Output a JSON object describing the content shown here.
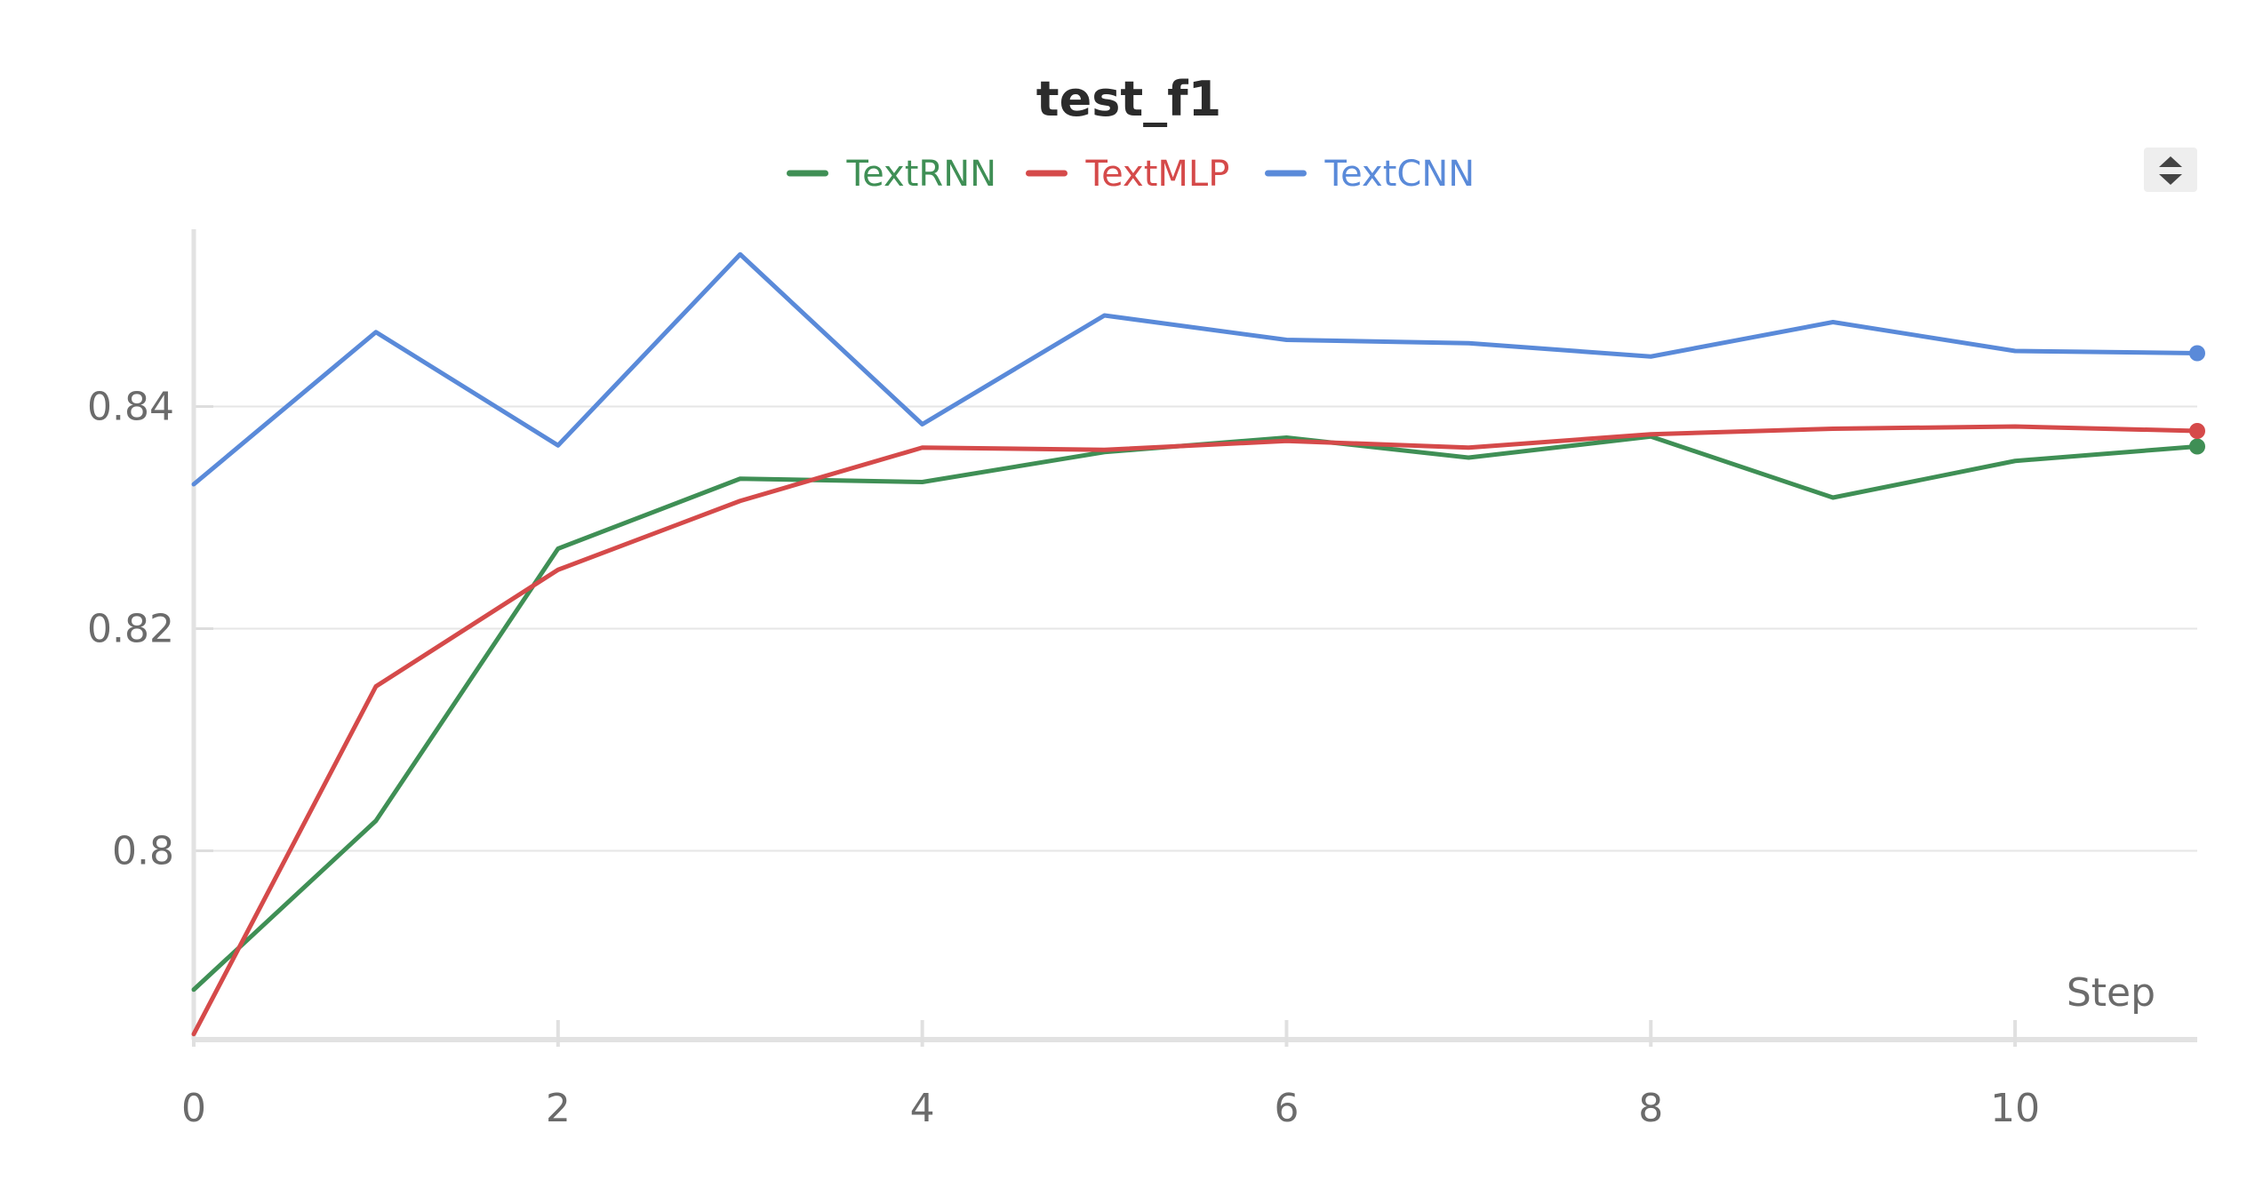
{
  "chart_data": {
    "type": "line",
    "title": "test_f1",
    "xlabel": "Step",
    "ylabel": "",
    "xlim": [
      0,
      11
    ],
    "ylim": [
      0.783,
      0.857
    ],
    "x_ticks": [
      0,
      2,
      4,
      6,
      8,
      10
    ],
    "y_ticks": [
      0.8,
      0.82,
      0.84
    ],
    "y_tick_labels": [
      "0.8",
      "0.82",
      "0.84"
    ],
    "grid": true,
    "legend_position": "top-center",
    "x": [
      0,
      1,
      2,
      3,
      4,
      5,
      6,
      7,
      8,
      9,
      10,
      11
    ],
    "series": [
      {
        "name": "TextRNN",
        "color": "#3f8f55",
        "values": [
          0.7875,
          0.8027,
          0.8272,
          0.8335,
          0.8332,
          0.8359,
          0.8372,
          0.8354,
          0.8373,
          0.8318,
          0.8351,
          0.8364
        ]
      },
      {
        "name": "TextMLP",
        "color": "#d54a4a",
        "values": [
          0.7835,
          0.8148,
          0.8253,
          0.8315,
          0.8363,
          0.8361,
          0.8369,
          0.8363,
          0.8375,
          0.838,
          0.8382,
          0.8378
        ]
      },
      {
        "name": "TextCNN",
        "color": "#5a8ad9",
        "values": [
          0.833,
          0.8467,
          0.8365,
          0.8537,
          0.8384,
          0.8482,
          0.846,
          0.8457,
          0.8445,
          0.8476,
          0.845,
          0.8448
        ]
      }
    ]
  },
  "controls": {
    "legend_toggle_icon": "up-down-arrows-icon"
  }
}
